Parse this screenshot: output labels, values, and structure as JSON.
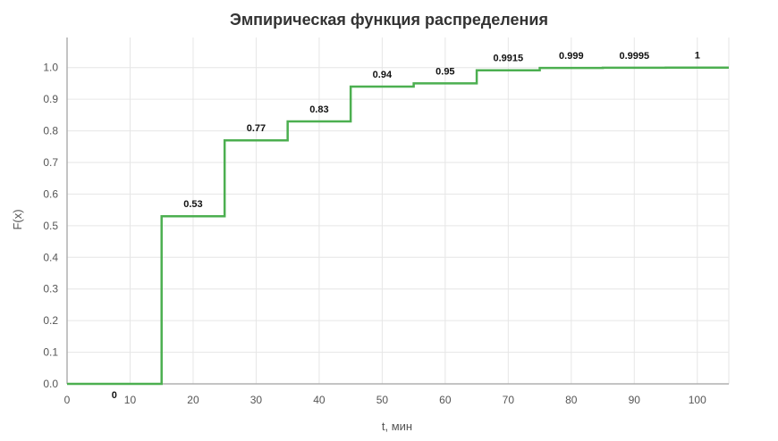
{
  "chart_data": {
    "type": "line",
    "step": true,
    "title": "Эмпирическая функция распределения",
    "xlabel": "t, мин",
    "ylabel": "F(x)",
    "xlim": [
      0,
      105
    ],
    "ylim": [
      0,
      1.05
    ],
    "x_ticks": [
      0,
      10,
      20,
      30,
      40,
      50,
      60,
      70,
      80,
      90,
      100
    ],
    "y_ticks": [
      0.0,
      0.1,
      0.2,
      0.3,
      0.4,
      0.5,
      0.6,
      0.7,
      0.8,
      0.9,
      1.0
    ],
    "grid": true,
    "line_color": "#4caf50",
    "series": [
      {
        "segments": [
          {
            "x0": 0,
            "x1": 15,
            "y": 0,
            "label": "0"
          },
          {
            "x0": 15,
            "x1": 25,
            "y": 0.53,
            "label": "0.53"
          },
          {
            "x0": 25,
            "x1": 35,
            "y": 0.77,
            "label": "0.77"
          },
          {
            "x0": 35,
            "x1": 45,
            "y": 0.83,
            "label": "0.83"
          },
          {
            "x0": 45,
            "x1": 55,
            "y": 0.94,
            "label": "0.94"
          },
          {
            "x0": 55,
            "x1": 65,
            "y": 0.95,
            "label": "0.95"
          },
          {
            "x0": 65,
            "x1": 75,
            "y": 0.9915,
            "label": "0.9915"
          },
          {
            "x0": 75,
            "x1": 85,
            "y": 0.999,
            "label": "0.999"
          },
          {
            "x0": 85,
            "x1": 95,
            "y": 0.9995,
            "label": "0.9995"
          },
          {
            "x0": 95,
            "x1": 105,
            "y": 1,
            "label": "1"
          }
        ]
      }
    ]
  }
}
